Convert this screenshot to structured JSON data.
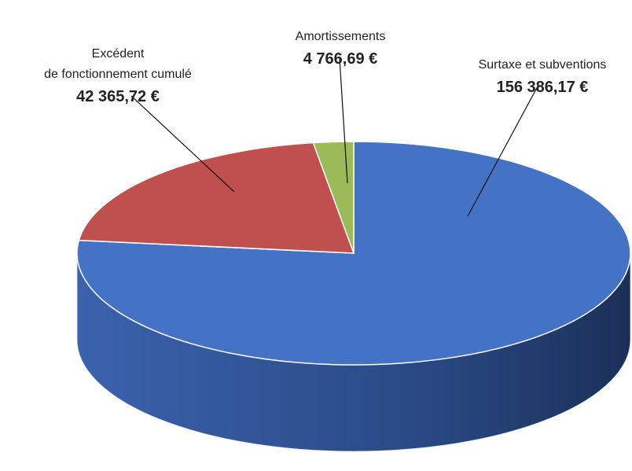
{
  "chart_data": {
    "type": "pie",
    "categories": [
      "Surtaxe et subventions",
      "Excédent\nde fonctionnement cumulé",
      "Amortissements"
    ],
    "values": [
      156386.17,
      42365.72,
      4766.69
    ],
    "value_labels": [
      "156 386,17 €",
      "42 365,72 €",
      "4 766,69 €"
    ],
    "colors": [
      "#4472c4",
      "#c0504d",
      "#9bbb59"
    ]
  }
}
